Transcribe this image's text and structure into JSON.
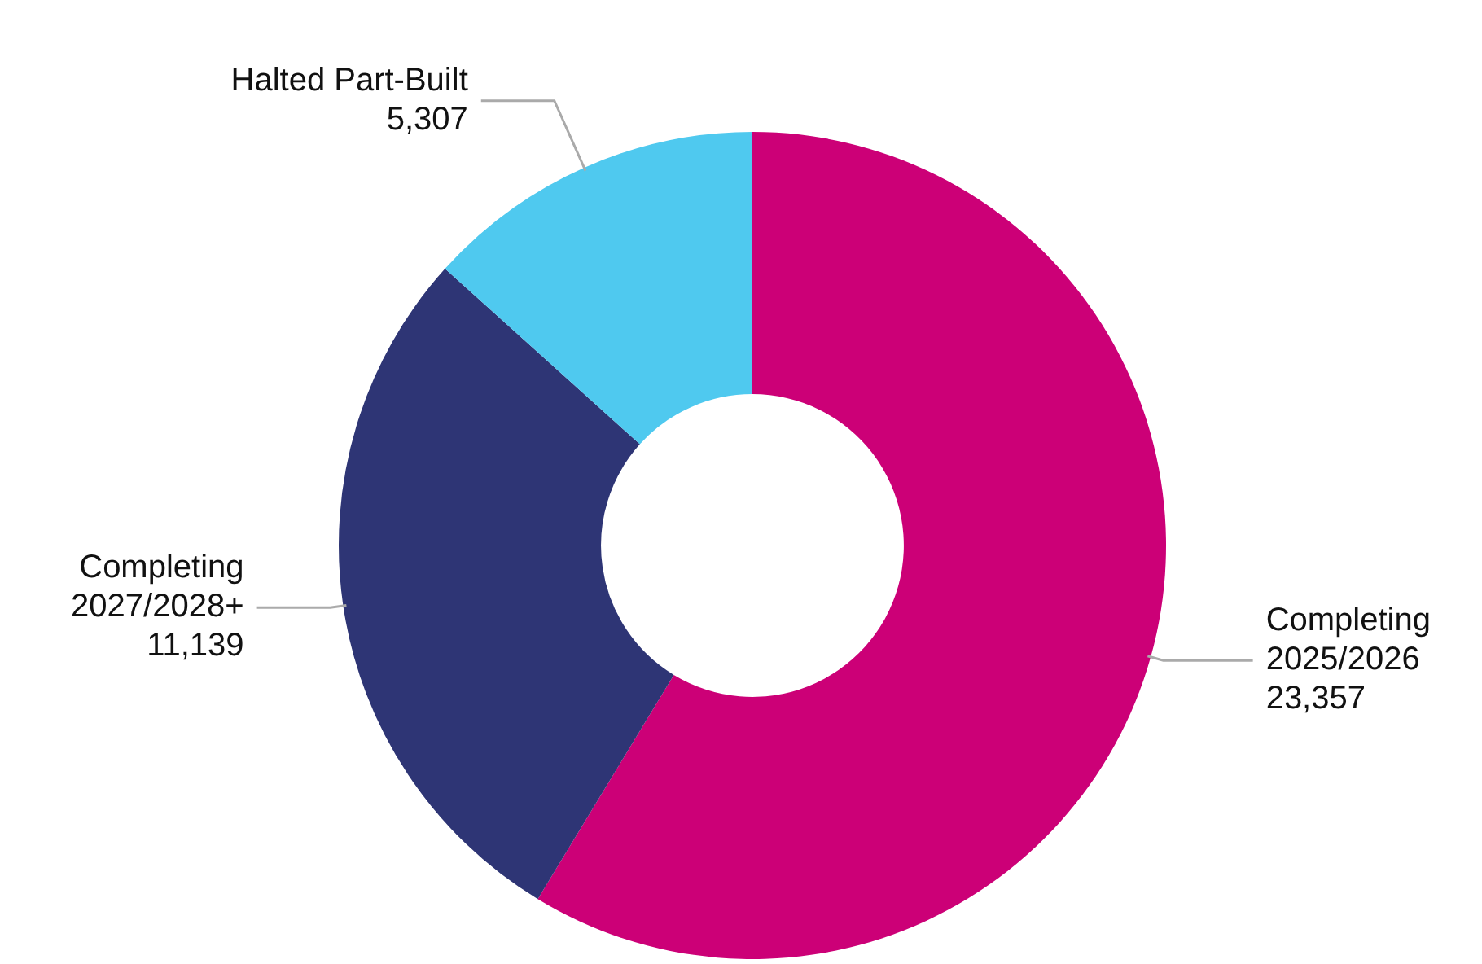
{
  "chart_data": {
    "type": "donut",
    "categories": [
      "Completing\n2025/2026",
      "Completing\n2027/2028+",
      "Halted Part-Built"
    ],
    "values": [
      23357,
      11139,
      5307
    ],
    "colors": [
      "#cc0077",
      "#2e3575",
      "#4fc9ef"
    ],
    "value_labels": [
      "23,357",
      "11,139",
      "5,307"
    ],
    "legend": false
  }
}
